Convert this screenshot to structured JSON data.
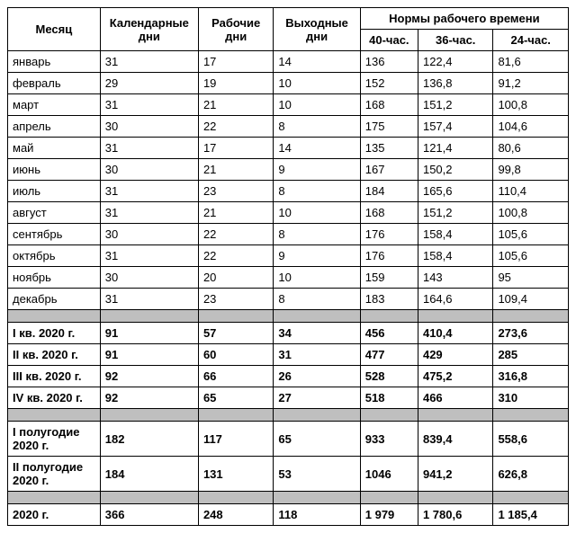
{
  "headers": {
    "month": "Месяц",
    "calendar_days": "Календарные дни",
    "work_days": "Рабочие дни",
    "off_days": "Выходные дни",
    "norms_group": "Нормы рабочего времени",
    "h40": "40-час.",
    "h36": "36-час.",
    "h24": "24-час."
  },
  "months": [
    {
      "name": "январь",
      "cal": "31",
      "work": "17",
      "off": "14",
      "h40": "136",
      "h36": "122,4",
      "h24": "81,6"
    },
    {
      "name": "февраль",
      "cal": "29",
      "work": "19",
      "off": "10",
      "h40": "152",
      "h36": "136,8",
      "h24": "91,2"
    },
    {
      "name": "март",
      "cal": "31",
      "work": "21",
      "off": "10",
      "h40": "168",
      "h36": "151,2",
      "h24": "100,8"
    },
    {
      "name": "апрель",
      "cal": "30",
      "work": "22",
      "off": "8",
      "h40": "175",
      "h36": "157,4",
      "h24": "104,6"
    },
    {
      "name": "май",
      "cal": "31",
      "work": "17",
      "off": "14",
      "h40": "135",
      "h36": "121,4",
      "h24": "80,6"
    },
    {
      "name": "июнь",
      "cal": "30",
      "work": "21",
      "off": "9",
      "h40": "167",
      "h36": "150,2",
      "h24": "99,8"
    },
    {
      "name": "июль",
      "cal": "31",
      "work": "23",
      "off": "8",
      "h40": "184",
      "h36": "165,6",
      "h24": "110,4"
    },
    {
      "name": "август",
      "cal": "31",
      "work": "21",
      "off": "10",
      "h40": "168",
      "h36": "151,2",
      "h24": "100,8"
    },
    {
      "name": "сентябрь",
      "cal": "30",
      "work": "22",
      "off": "8",
      "h40": "176",
      "h36": "158,4",
      "h24": "105,6"
    },
    {
      "name": "октябрь",
      "cal": "31",
      "work": "22",
      "off": "9",
      "h40": "176",
      "h36": "158,4",
      "h24": "105,6"
    },
    {
      "name": "ноябрь",
      "cal": "30",
      "work": "20",
      "off": "10",
      "h40": "159",
      "h36": "143",
      "h24": "95"
    },
    {
      "name": "декабрь",
      "cal": "31",
      "work": "23",
      "off": "8",
      "h40": "183",
      "h36": "164,6",
      "h24": "109,4"
    }
  ],
  "quarters": [
    {
      "name": "I кв. 2020 г.",
      "cal": "91",
      "work": "57",
      "off": "34",
      "h40": "456",
      "h36": "410,4",
      "h24": "273,6"
    },
    {
      "name": "II кв. 2020 г.",
      "cal": "91",
      "work": "60",
      "off": "31",
      "h40": "477",
      "h36": "429",
      "h24": "285"
    },
    {
      "name": "III кв. 2020 г.",
      "cal": "92",
      "work": "66",
      "off": "26",
      "h40": "528",
      "h36": "475,2",
      "h24": "316,8"
    },
    {
      "name": "IV кв. 2020 г.",
      "cal": "92",
      "work": "65",
      "off": "27",
      "h40": "518",
      "h36": "466",
      "h24": "310"
    }
  ],
  "halves": [
    {
      "name": "I   полугодие 2020 г.",
      "cal": "182",
      "work": "117",
      "off": "65",
      "h40": "933",
      "h36": "839,4",
      "h24": "558,6"
    },
    {
      "name": "II  полугодие 2020 г.",
      "cal": "184",
      "work": "131",
      "off": "53",
      "h40": "1046",
      "h36": "941,2",
      "h24": "626,8"
    }
  ],
  "year": {
    "name": "2020 г.",
    "cal": "366",
    "work": "248",
    "off": "118",
    "h40": "1 979",
    "h36": "1 780,6",
    "h24": "1 185,4"
  },
  "colors": {
    "border": "#000000",
    "separator_bg": "#bfbfbf",
    "background": "#ffffff",
    "text": "#000000"
  },
  "font": {
    "family": "Arial",
    "size_pt": 10
  }
}
